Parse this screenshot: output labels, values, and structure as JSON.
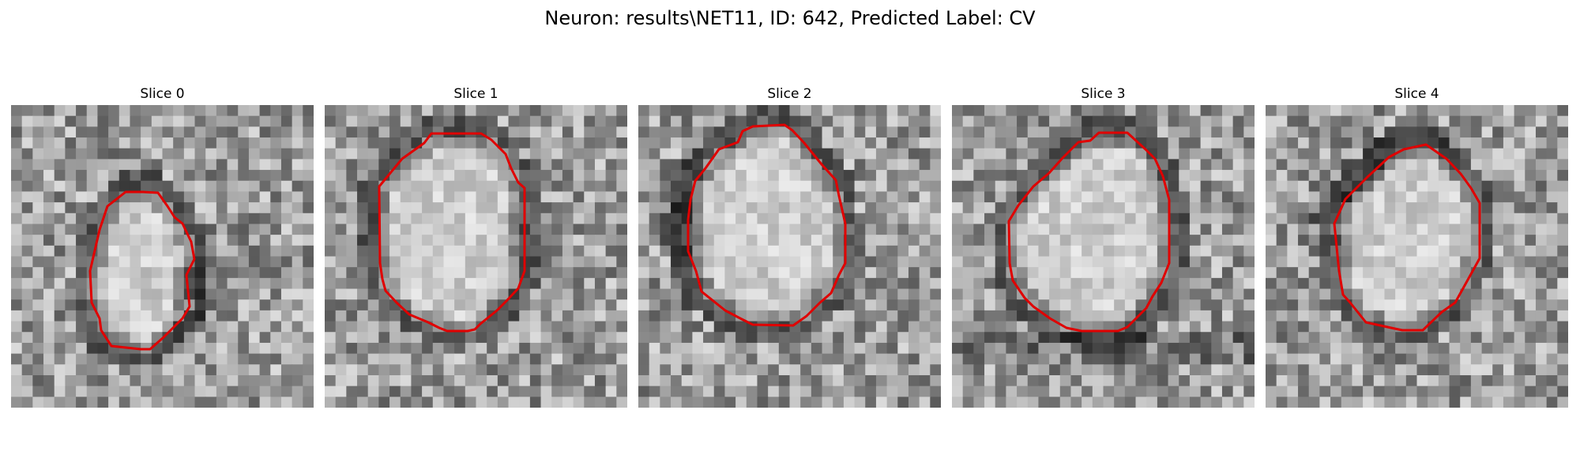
{
  "figure": {
    "title": "Neuron: results\\NET11, ID: 642, Predicted Label: CV"
  },
  "colors": {
    "contour": "#e00000",
    "background": "#ffffff"
  },
  "slices": [
    {
      "title": "Slice 0",
      "seed": 11,
      "dark_ring": "thick-lower-right",
      "shape": "slice-0"
    },
    {
      "title": "Slice 1",
      "seed": 23,
      "dark_ring": "medium",
      "shape": "slice-1"
    },
    {
      "title": "Slice 2",
      "seed": 37,
      "dark_ring": "thick-left",
      "shape": "slice-2"
    },
    {
      "title": "Slice 3",
      "seed": 53,
      "dark_ring": "lower-band",
      "shape": "slice-3"
    },
    {
      "title": "Slice 4",
      "seed": 71,
      "dark_ring": "upper-left",
      "shape": "slice-4"
    }
  ]
}
